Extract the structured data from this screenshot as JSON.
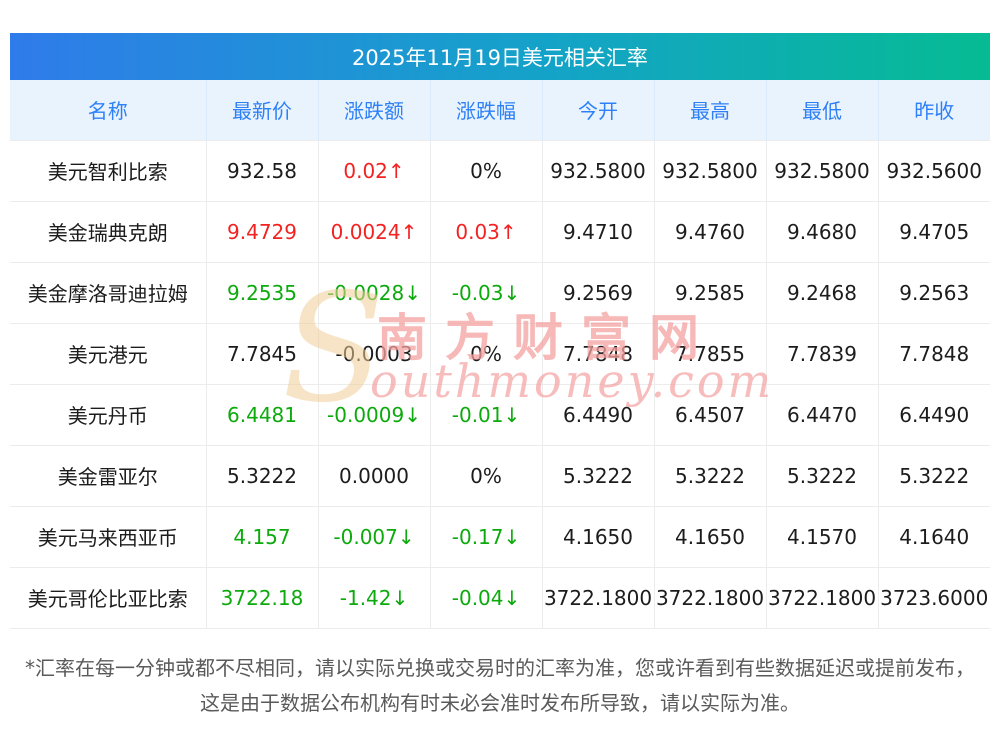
{
  "page": {
    "footnote": "*汇率在每一分钟或都不尽相同，请以实际兑换或交易时的汇率为准，您或许看到有些数据延迟或提前发布，这是由于数据公布机构有时未必会准时发布所导致，请以实际为准。"
  },
  "watermark": {
    "initial": "S",
    "cn": "南方财富网",
    "en": "outhmoney.com"
  },
  "colors": {
    "up": "#f32222",
    "down": "#0daa0d",
    "neutral": "#1c1c1c",
    "header_text": "#2e80f7",
    "header_bg": "#e9f3fd",
    "title_gradient_left": "#2f7bea",
    "title_gradient_right": "#06bb93"
  },
  "chart_data": {
    "type": "table",
    "title": "2025年11月19日美元相关汇率",
    "columns": [
      "名称",
      "最新价",
      "涨跌额",
      "涨跌幅",
      "今开",
      "最高",
      "最低",
      "昨收"
    ],
    "rows": [
      {
        "cells": [
          {
            "text": "美元智利比索",
            "color": "neutral"
          },
          {
            "text": "932.58",
            "color": "neutral"
          },
          {
            "text": "0.02↑",
            "color": "up"
          },
          {
            "text": "0%",
            "color": "neutral"
          },
          {
            "text": "932.5800",
            "color": "neutral"
          },
          {
            "text": "932.5800",
            "color": "neutral"
          },
          {
            "text": "932.5800",
            "color": "neutral"
          },
          {
            "text": "932.5600",
            "color": "neutral"
          }
        ]
      },
      {
        "cells": [
          {
            "text": "美金瑞典克朗",
            "color": "neutral"
          },
          {
            "text": "9.4729",
            "color": "up"
          },
          {
            "text": "0.0024↑",
            "color": "up"
          },
          {
            "text": "0.03↑",
            "color": "up"
          },
          {
            "text": "9.4710",
            "color": "neutral"
          },
          {
            "text": "9.4760",
            "color": "neutral"
          },
          {
            "text": "9.4680",
            "color": "neutral"
          },
          {
            "text": "9.4705",
            "color": "neutral"
          }
        ]
      },
      {
        "cells": [
          {
            "text": "美金摩洛哥迪拉姆",
            "color": "neutral"
          },
          {
            "text": "9.2535",
            "color": "down"
          },
          {
            "text": "-0.0028↓",
            "color": "down"
          },
          {
            "text": "-0.03↓",
            "color": "down"
          },
          {
            "text": "9.2569",
            "color": "neutral"
          },
          {
            "text": "9.2585",
            "color": "neutral"
          },
          {
            "text": "9.2468",
            "color": "neutral"
          },
          {
            "text": "9.2563",
            "color": "neutral"
          }
        ]
      },
      {
        "cells": [
          {
            "text": "美元港元",
            "color": "neutral"
          },
          {
            "text": "7.7845",
            "color": "neutral"
          },
          {
            "text": "-0.0003",
            "color": "neutral"
          },
          {
            "text": "0%",
            "color": "neutral"
          },
          {
            "text": "7.7848",
            "color": "neutral"
          },
          {
            "text": "7.7855",
            "color": "neutral"
          },
          {
            "text": "7.7839",
            "color": "neutral"
          },
          {
            "text": "7.7848",
            "color": "neutral"
          }
        ]
      },
      {
        "cells": [
          {
            "text": "美元丹币",
            "color": "neutral"
          },
          {
            "text": "6.4481",
            "color": "down"
          },
          {
            "text": "-0.0009↓",
            "color": "down"
          },
          {
            "text": "-0.01↓",
            "color": "down"
          },
          {
            "text": "6.4490",
            "color": "neutral"
          },
          {
            "text": "6.4507",
            "color": "neutral"
          },
          {
            "text": "6.4470",
            "color": "neutral"
          },
          {
            "text": "6.4490",
            "color": "neutral"
          }
        ]
      },
      {
        "cells": [
          {
            "text": "美金雷亚尔",
            "color": "neutral"
          },
          {
            "text": "5.3222",
            "color": "neutral"
          },
          {
            "text": "0.0000",
            "color": "neutral"
          },
          {
            "text": "0%",
            "color": "neutral"
          },
          {
            "text": "5.3222",
            "color": "neutral"
          },
          {
            "text": "5.3222",
            "color": "neutral"
          },
          {
            "text": "5.3222",
            "color": "neutral"
          },
          {
            "text": "5.3222",
            "color": "neutral"
          }
        ]
      },
      {
        "cells": [
          {
            "text": "美元马来西亚币",
            "color": "neutral"
          },
          {
            "text": "4.157",
            "color": "down"
          },
          {
            "text": "-0.007↓",
            "color": "down"
          },
          {
            "text": "-0.17↓",
            "color": "down"
          },
          {
            "text": "4.1650",
            "color": "neutral"
          },
          {
            "text": "4.1650",
            "color": "neutral"
          },
          {
            "text": "4.1570",
            "color": "neutral"
          },
          {
            "text": "4.1640",
            "color": "neutral"
          }
        ]
      },
      {
        "cells": [
          {
            "text": "美元哥伦比亚比索",
            "color": "neutral"
          },
          {
            "text": "3722.18",
            "color": "down"
          },
          {
            "text": "-1.42↓",
            "color": "down"
          },
          {
            "text": "-0.04↓",
            "color": "down"
          },
          {
            "text": "3722.1800",
            "color": "neutral"
          },
          {
            "text": "3722.1800",
            "color": "neutral"
          },
          {
            "text": "3722.1800",
            "color": "neutral"
          },
          {
            "text": "3723.6000",
            "color": "neutral"
          }
        ]
      }
    ]
  }
}
